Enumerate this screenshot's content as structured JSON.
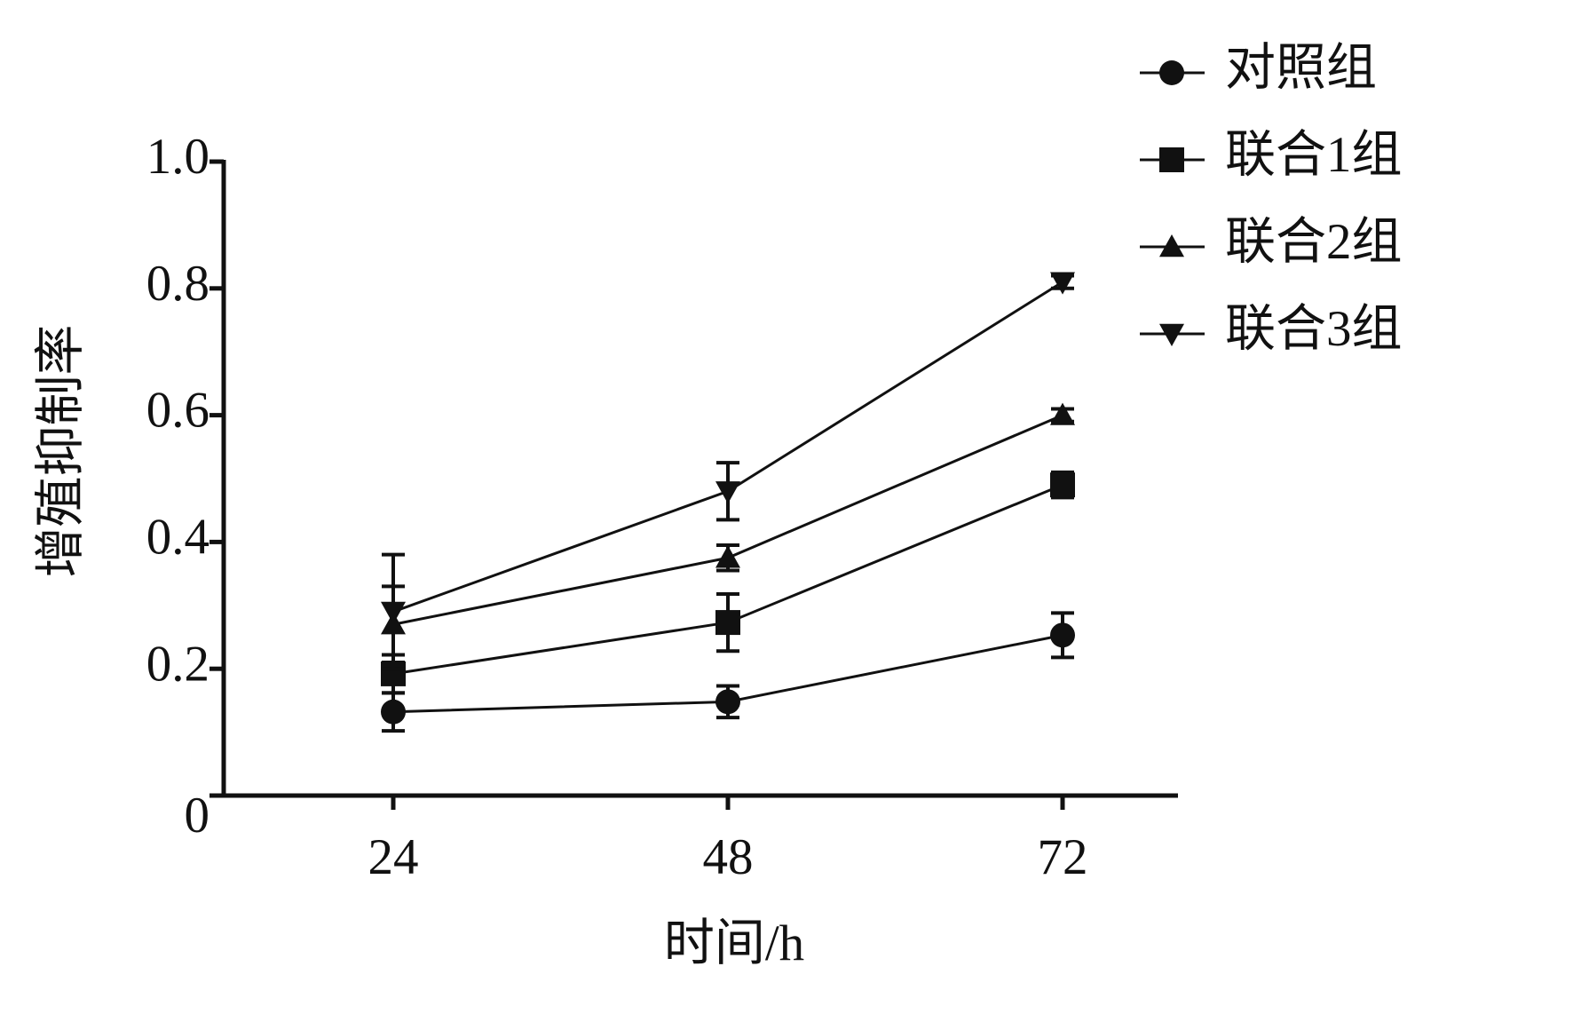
{
  "chart_data": {
    "type": "line",
    "x_label": "时间/h",
    "y_label": "增殖抑制率",
    "categories": [
      "24",
      "48",
      "72"
    ],
    "ylim": [
      0,
      1
    ],
    "yticks": [
      0,
      0.2,
      0.4,
      0.6,
      0.8,
      {
        "value": 1,
        "label": "1.0"
      }
    ],
    "legend_position": "top-right",
    "series": [
      {
        "name": "对照组",
        "color": "#111111",
        "marker": "circle",
        "values": [
          0.132,
          0.148,
          0.253
        ],
        "errors": [
          0.03,
          0.025,
          0.035
        ]
      },
      {
        "name": "联合1组",
        "color": "#111111",
        "marker": "square",
        "values": [
          0.192,
          0.273,
          0.49
        ],
        "errors": [
          0.03,
          0.045,
          0.02
        ]
      },
      {
        "name": "联合2组",
        "color": "#111111",
        "marker": "triangle-up",
        "values": [
          0.27,
          0.375,
          0.6
        ],
        "errors": [
          0.06,
          0.02,
          0.01
        ]
      },
      {
        "name": "联合3组",
        "color": "#111111",
        "marker": "triangle-down",
        "values": [
          0.29,
          0.48,
          0.81
        ],
        "errors": [
          0.09,
          0.045,
          0.01
        ]
      }
    ]
  }
}
